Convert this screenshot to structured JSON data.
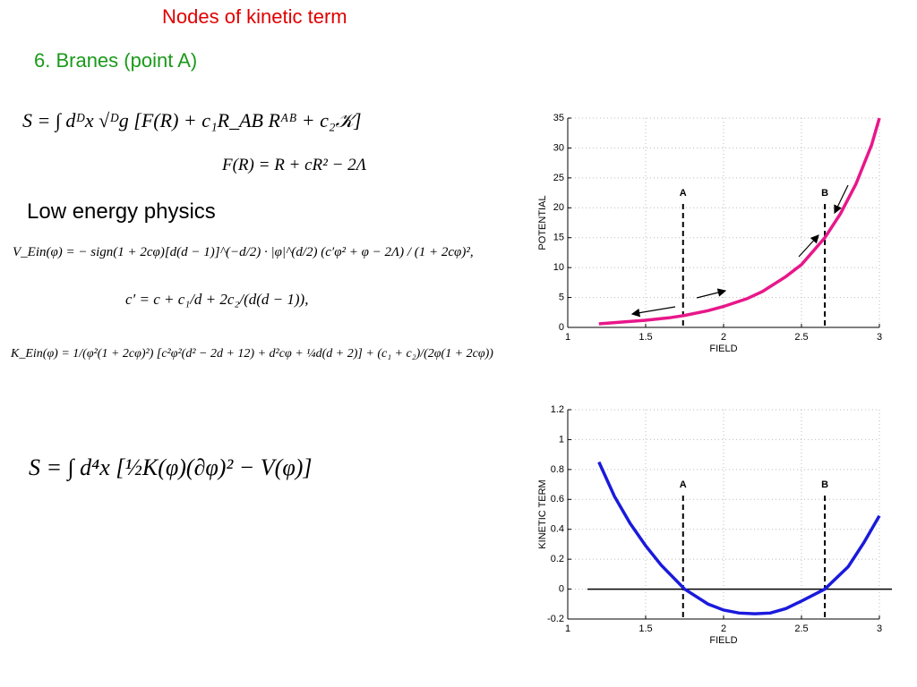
{
  "slide": {
    "title": "Nodes of kinetic term",
    "subtitle": "6. Branes (point A)",
    "heading": "Low energy physics",
    "equations": [
      "S = ∫ dᴰx √ᴰg [F(R) + c₁R_AB Rᴬᴮ + c₂𝒦]",
      "F(R) = R + cR² − 2Λ",
      "V_Ein(φ) = − sign(1 + 2cφ)[d(d − 1)]^(−d/2) · |φ|^(d/2) (c′φ² + φ − 2Λ) / (1 + 2cφ)²,",
      "c′ = c + c₁/d + 2c₂/(d(d − 1)),",
      "K_Ein(φ) = 1/(φ²(1 + 2cφ)²) [c²φ²(d² − 2d + 12) + d²cφ + ¼d(d + 2)] + (c₁ + c₂)/(2φ(1 + 2cφ))",
      "S = ∫ d⁴x [½K(φ)(∂φ)² − V(φ)]"
    ]
  },
  "chart_data": [
    {
      "type": "line",
      "x_label": "FIELD",
      "y_label": "POTENTIAL",
      "x": [
        1.2,
        1.35,
        1.5,
        1.65,
        1.75,
        1.9,
        2.0,
        2.15,
        2.25,
        2.4,
        2.5,
        2.65,
        2.75,
        2.85,
        2.95,
        3.0
      ],
      "values": [
        0.6,
        0.9,
        1.2,
        1.6,
        2.0,
        2.8,
        3.5,
        4.8,
        6.0,
        8.5,
        10.5,
        15,
        19,
        24,
        30.5,
        35
      ],
      "color": "#e8178a",
      "xlim": [
        1,
        3
      ],
      "xticks": [
        1,
        1.5,
        2,
        2.5,
        3
      ],
      "ylim": [
        0,
        35
      ],
      "yticks": [
        0,
        5,
        10,
        15,
        20,
        25,
        30,
        35
      ],
      "grid": true,
      "markers": [
        {
          "label": "A",
          "x": 1.74
        },
        {
          "label": "B",
          "x": 2.65
        }
      ]
    },
    {
      "type": "line",
      "x_label": "FIELD",
      "y_label": "KINETIC TERM",
      "x": [
        1.2,
        1.3,
        1.4,
        1.5,
        1.6,
        1.75,
        1.9,
        2.0,
        2.1,
        2.2,
        2.3,
        2.4,
        2.5,
        2.65,
        2.8,
        2.9,
        3.0
      ],
      "values": [
        0.85,
        0.62,
        0.44,
        0.29,
        0.16,
        0.0,
        -0.1,
        -0.14,
        -0.16,
        -0.165,
        -0.16,
        -0.13,
        -0.08,
        0.0,
        0.15,
        0.31,
        0.49
      ],
      "color": "#1a1adc",
      "xlim": [
        1,
        3
      ],
      "xticks": [
        1,
        1.5,
        2,
        2.5,
        3
      ],
      "ylim": [
        -0.2,
        1.2
      ],
      "yticks": [
        -0.2,
        0,
        0.2,
        0.4,
        0.6,
        0.8,
        1,
        1.2
      ],
      "grid": true,
      "zero_line": true,
      "markers": [
        {
          "label": "A",
          "x": 1.74
        },
        {
          "label": "B",
          "x": 2.65
        }
      ]
    }
  ]
}
